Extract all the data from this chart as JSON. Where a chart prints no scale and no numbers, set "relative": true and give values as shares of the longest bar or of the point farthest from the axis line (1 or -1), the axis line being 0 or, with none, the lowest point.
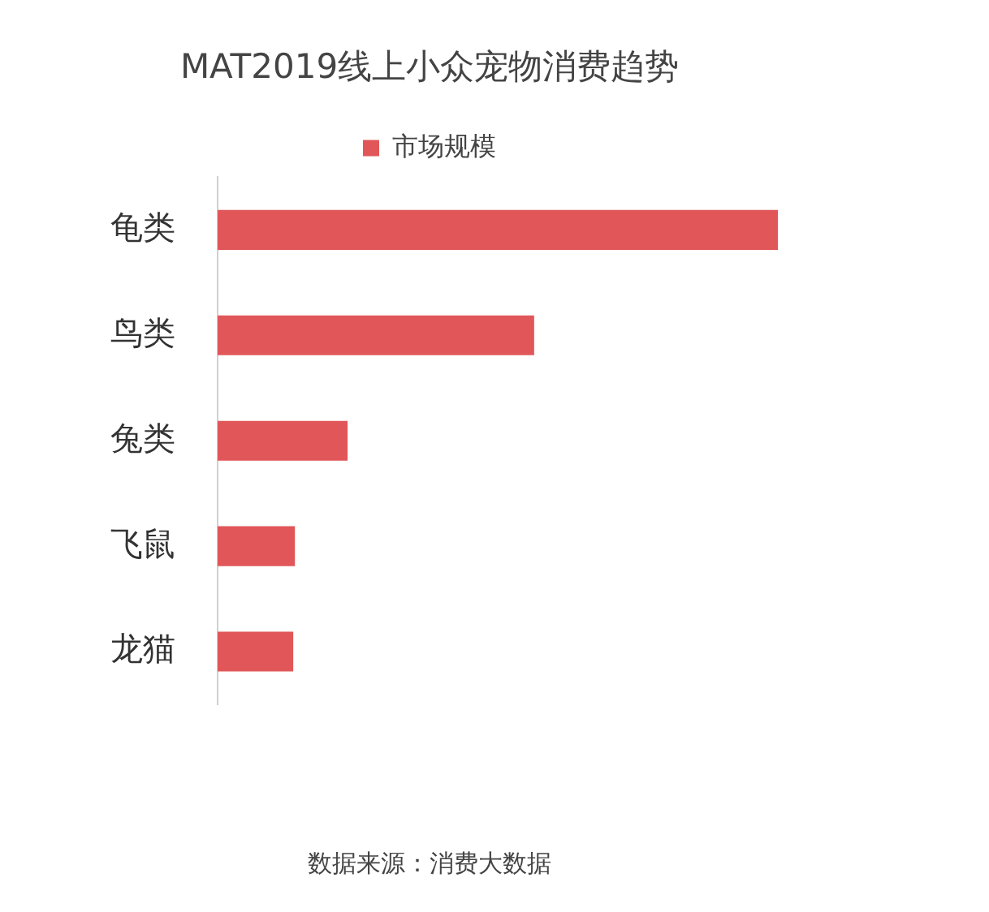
{
  "chart_data": {
    "type": "bar",
    "orientation": "horizontal",
    "relative": true,
    "title": "MAT2019线上小众宠物消费趋势",
    "categories": [
      "龟类",
      "鸟类",
      "兔类",
      "飞鼠",
      "龙猫"
    ],
    "series": [
      {
        "name": "市场规模",
        "color": "#e15759",
        "values": [
          1,
          0.565,
          0.232,
          0.138,
          0.135
        ]
      }
    ],
    "legend": "top",
    "annotations": [
      "数据来源：消费大数据"
    ]
  }
}
